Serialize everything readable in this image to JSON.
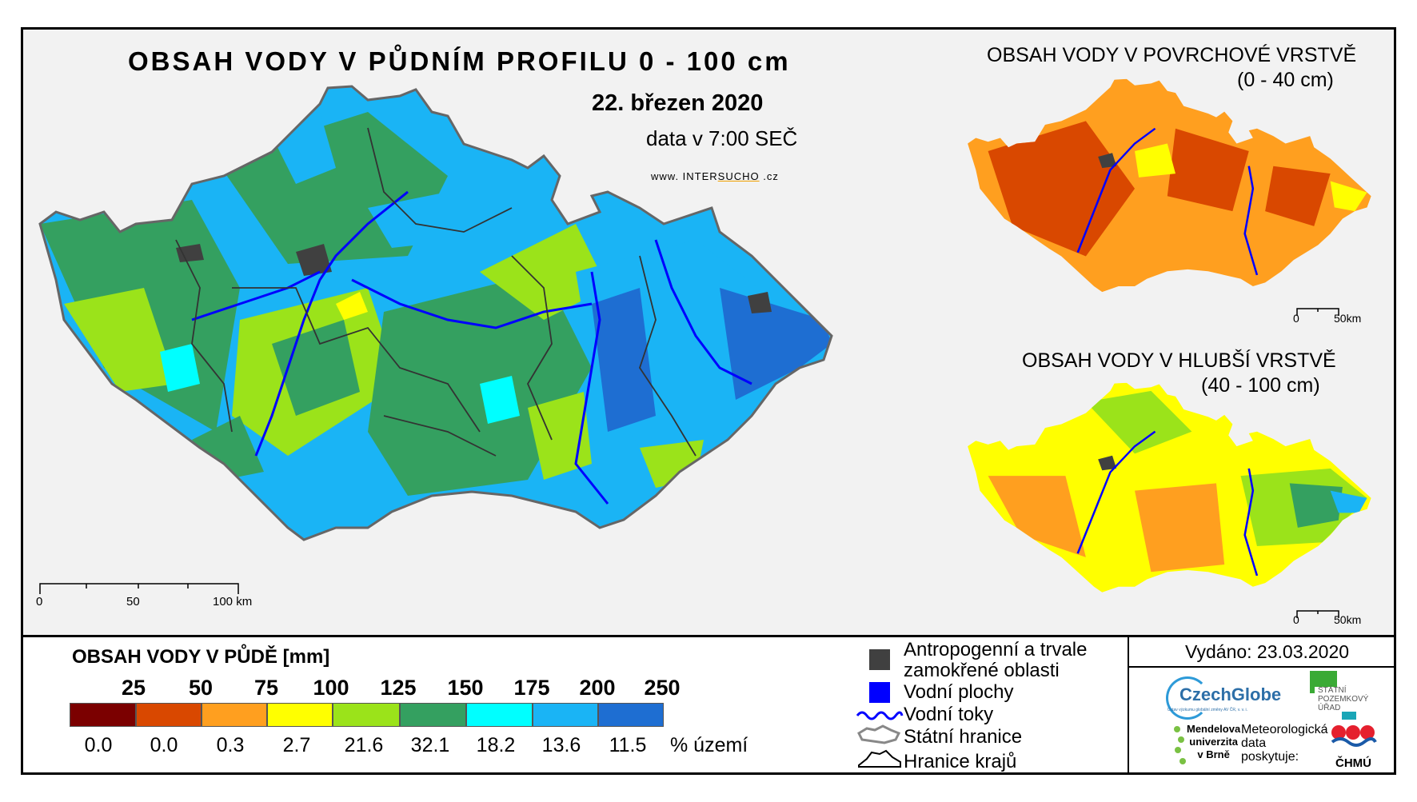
{
  "main_map": {
    "title": "OBSAH VODY V PŮDNÍM PROFILU 0 - 100 cm",
    "date": "22. březen 2020",
    "time": "data v 7:00 SEČ",
    "website_prefix": "www. INTER",
    "website_brand": "SUCHO",
    "website_suffix": " .cz",
    "scale": {
      "label0": "0",
      "label1": "50",
      "label2": "100 km"
    }
  },
  "inset_top": {
    "title": "OBSAH VODY V POVRCHOVÉ VRSTVĚ",
    "subtitle": "(0 - 40 cm)",
    "scale": {
      "label0": "0",
      "label1": "50km"
    }
  },
  "inset_bottom": {
    "title": "OBSAH VODY V HLUBŠÍ VRSTVĚ",
    "subtitle": "(40 - 100 cm)",
    "scale": {
      "label0": "0",
      "label1": "50km"
    }
  },
  "legend": {
    "title": "OBSAH VODY V PŮDĚ [mm]",
    "thresholds": [
      "25",
      "50",
      "75",
      "100",
      "125",
      "150",
      "175",
      "200",
      "250"
    ],
    "colors": [
      "#7b0000",
      "#d94800",
      "#ff9f1f",
      "#ffff00",
      "#9be31a",
      "#34a060",
      "#00ffff",
      "#1ab4f5",
      "#1e6ed2"
    ],
    "percentages": [
      "0.0",
      "0.0",
      "0.3",
      "2.7",
      "21.6",
      "32.1",
      "18.2",
      "13.6",
      "11.5"
    ],
    "percent_unit": "% území"
  },
  "symbols": {
    "anthropogenic_line1": "Antropogenní a trvale",
    "anthropogenic_line2": "zamokřené oblasti",
    "water_areas": "Vodní plochy",
    "streams": "Vodní toky",
    "state_border": "Státní hranice",
    "region_border": "Hranice krajů",
    "colors": {
      "anthropogenic": "#404040",
      "water": "#0000ff",
      "streams": "#0000ff"
    }
  },
  "footer": {
    "issued": "Vydáno: 23.03.2020",
    "czechglobe": "CzechGlobe",
    "czechglobe_sub": "Ústav výzkumu globální změny AV ČR, v. v. i.",
    "spu_line1": "STÁTNÍ",
    "spu_line2": "POZEMKOVÝ",
    "spu_line3": "ÚŘAD",
    "mendel_line1": "Mendelova",
    "mendel_line2": "univerzita",
    "mendel_line3": "v Brně",
    "meteo_line1": "Meteorologická",
    "meteo_line2": "data",
    "meteo_line3": "poskytuje:",
    "chmu": "ČHMÚ"
  }
}
